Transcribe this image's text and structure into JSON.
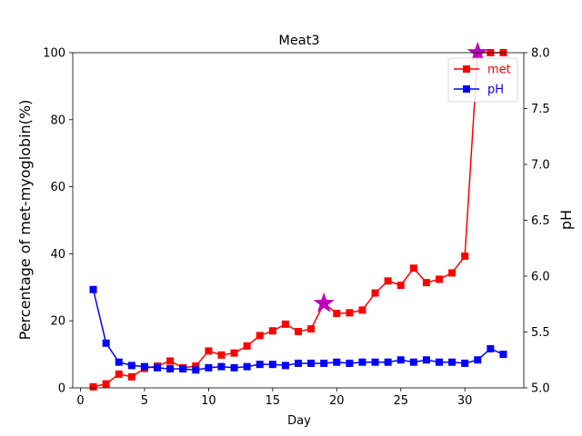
{
  "chart_data": {
    "type": "line",
    "title": "Meat3",
    "xlabel": "Day",
    "ylabel": "Percentage of met-myoglobin(%)",
    "y2label": "pH",
    "xlim": [
      -0.6,
      34.6
    ],
    "ylim": [
      0,
      100
    ],
    "y2lim": [
      5.0,
      8.0
    ],
    "xticks": [
      0,
      5,
      10,
      15,
      20,
      25,
      30
    ],
    "yticks": [
      0,
      20,
      40,
      60,
      80,
      100
    ],
    "y2ticks": [
      5.0,
      5.5,
      6.0,
      6.5,
      7.0,
      7.5,
      8.0
    ],
    "y2ticklabels": [
      "5.0",
      "5.5",
      "6.0",
      "6.5",
      "7.0",
      "7.5",
      "8.0"
    ],
    "grid": false,
    "legend_position": "top-right",
    "x": [
      1,
      2,
      3,
      4,
      5,
      6,
      7,
      8,
      9,
      10,
      11,
      12,
      13,
      14,
      15,
      16,
      17,
      18,
      19,
      20,
      21,
      22,
      23,
      24,
      25,
      26,
      27,
      28,
      29,
      30,
      31,
      32,
      33
    ],
    "series": [
      {
        "name": "met",
        "axis": "left",
        "color": "#ff0000",
        "marker": "square",
        "values": [
          0.3,
          1.2,
          4.1,
          3.3,
          5.8,
          6.5,
          8.0,
          6.0,
          6.5,
          11.0,
          9.8,
          10.4,
          12.5,
          15.6,
          17.0,
          19.0,
          16.8,
          17.6,
          25.2,
          22.2,
          22.4,
          23.2,
          28.3,
          31.9,
          30.6,
          35.7,
          31.4,
          32.4,
          34.3,
          39.3,
          100.0,
          100.0,
          100.0
        ]
      },
      {
        "name": "pH",
        "axis": "right",
        "color": "#0000ff",
        "marker": "square",
        "values": [
          5.88,
          5.4,
          5.23,
          5.2,
          5.19,
          5.18,
          5.17,
          5.17,
          5.16,
          5.18,
          5.19,
          5.18,
          5.19,
          5.21,
          5.21,
          5.2,
          5.22,
          5.22,
          5.22,
          5.23,
          5.22,
          5.23,
          5.23,
          5.23,
          5.25,
          5.23,
          5.25,
          5.23,
          5.23,
          5.22,
          5.25,
          5.35,
          5.3
        ]
      }
    ],
    "highlights": [
      {
        "series": "met",
        "x": 19,
        "y": 25.2,
        "marker": "star",
        "color": "#bf00bf"
      },
      {
        "series": "met",
        "x": 31,
        "y": 100.0,
        "marker": "star",
        "color": "#bf00bf"
      }
    ]
  }
}
